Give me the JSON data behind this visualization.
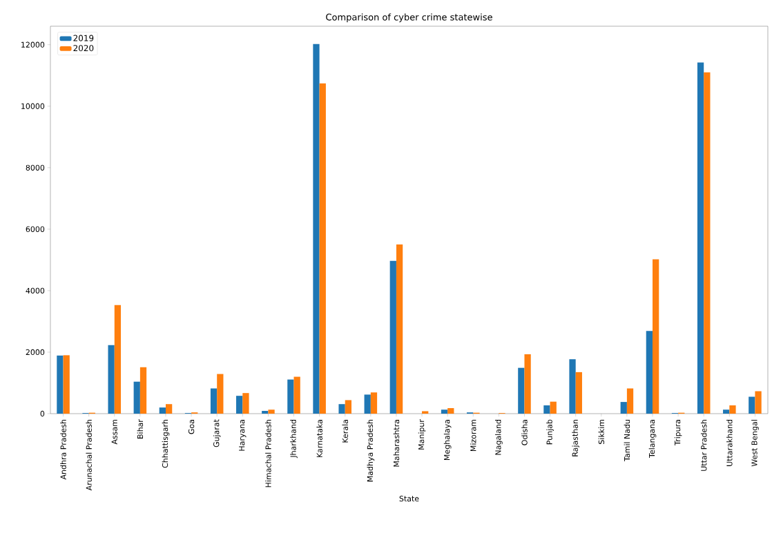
{
  "chart_data": {
    "type": "bar",
    "title": "Comparison of cyber crime statewise",
    "xlabel": "State",
    "categories": [
      "Andhra Pradesh",
      "Arunachal Pradesh",
      "Assam",
      "Bihar",
      "Chhattisgarh",
      "Goa",
      "Gujarat",
      "Haryana",
      "Himachal Pradesh",
      "Jharkhand",
      "Karnataka",
      "Kerala",
      "Madhya Pradesh",
      "Maharashtra",
      "Manipur",
      "Meghalaya",
      "Mizoram",
      "Nagaland",
      "Odisha",
      "Punjab",
      "Rajasthan",
      "Sikkim",
      "Tamil Nadu",
      "Telangana",
      "Tripura",
      "Uttar Pradesh",
      "Uttarakhand",
      "West Bengal"
    ],
    "series": [
      {
        "name": "2019",
        "color": "#1f77b4",
        "values": [
          1890,
          20,
          2230,
          1040,
          200,
          20,
          820,
          580,
          90,
          1110,
          12020,
          310,
          620,
          4970,
          null,
          130,
          40,
          null,
          1490,
          270,
          1770,
          0,
          380,
          2690,
          20,
          11420,
          130,
          550
        ]
      },
      {
        "name": "2020",
        "color": "#ff7f0e",
        "values": [
          1900,
          30,
          3530,
          1510,
          310,
          40,
          1290,
          670,
          130,
          1200,
          10740,
          440,
          690,
          5500,
          80,
          180,
          30,
          20,
          1930,
          390,
          1350,
          0,
          820,
          5020,
          30,
          11100,
          270,
          730
        ]
      }
    ],
    "ylim": [
      0,
      12600
    ],
    "yticks": [
      0,
      2000,
      4000,
      6000,
      8000,
      10000,
      12000
    ],
    "legend": "top left"
  }
}
